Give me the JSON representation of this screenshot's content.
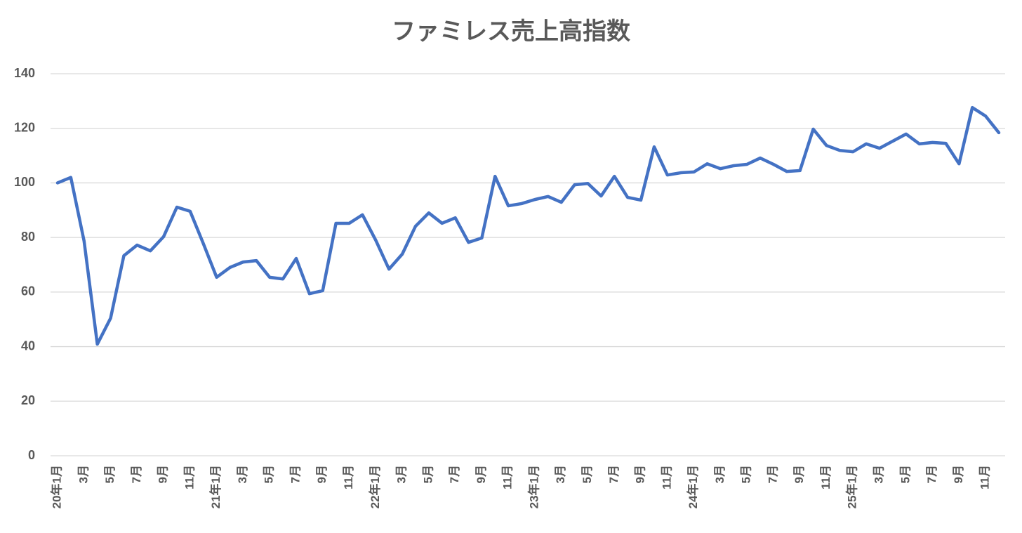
{
  "chart_data": {
    "type": "line",
    "title": "ファミレス売上高指数",
    "categories": [
      "20年1月",
      null,
      "3月",
      null,
      "5月",
      null,
      "7月",
      null,
      "9月",
      null,
      "11月",
      null,
      "21年1月",
      null,
      "3月",
      null,
      "5月",
      null,
      "7月",
      null,
      "9月",
      null,
      "11月",
      null,
      "22年1月",
      null,
      "3月",
      null,
      "5月",
      null,
      "7月",
      null,
      "9月",
      null,
      "11月",
      null,
      "23年1月",
      null,
      "3月",
      null,
      "5月",
      null,
      "7月",
      null,
      "9月",
      null,
      "11月",
      null,
      "24年1月",
      null,
      "3月",
      null,
      "5月",
      null,
      "7月",
      null,
      "9月",
      null,
      "11月",
      null,
      "25年1月",
      null,
      "3月",
      null,
      "5月",
      null,
      "7月",
      null,
      "9月",
      null,
      "11月",
      null
    ],
    "values": [
      100,
      102,
      78.7,
      40.9,
      50.4,
      73.3,
      77.2,
      75.1,
      80.3,
      91.1,
      89.6,
      77.7,
      65.4,
      69,
      71,
      71.5,
      65.4,
      64.8,
      72.3,
      59.4,
      60.5,
      85.2,
      85.2,
      88.3,
      79,
      68.4,
      73.9,
      84.1,
      89,
      85.2,
      87.2,
      78.2,
      79.8,
      102.4,
      91.6,
      92.4,
      93.9,
      95,
      92.9,
      99.3,
      99.8,
      95.2,
      102.4,
      94.7,
      93.7,
      113.2,
      102.9,
      103.7,
      104,
      107,
      105.2,
      106.3,
      106.8,
      109.1,
      106.8,
      104.2,
      104.5,
      119.7,
      113.7,
      111.9,
      111.4,
      114.3,
      112.7,
      115.3,
      117.9,
      114.3,
      114.8,
      114.5,
      107,
      127.6,
      124.5,
      118.4
    ],
    "color": "#4472c4",
    "ylim": [
      0,
      140
    ],
    "yticks": [
      0,
      20,
      40,
      60,
      80,
      100,
      120,
      140
    ],
    "grid": true
  }
}
